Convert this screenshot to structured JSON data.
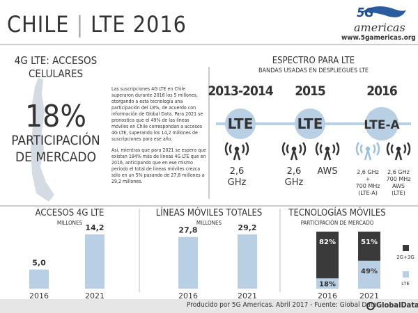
{
  "header": {
    "title_left": "CHILE",
    "title_right": "LTE 2016",
    "logo": "5G",
    "logo_sub": "americas",
    "url": "www.5gamericas.org"
  },
  "left": {
    "heading": "4G LTE: ACCESOS CELULARES",
    "big": "18%",
    "big_sub": "PARTICIPACIÓN DE MERCADO",
    "paragraphs": [
      "Las suscripciones 4G LTE en Chile superaron durante 2016 los 5 millones, otorgando a esta tecnología una participación del 18%, de acuerdo con información de Global Data. Para 2021 se pronostica que el 49% de las líneas móviles en Chile correspondan a accesos 4G LTE, superando los 14,2 millones de suscripciones para ese año.",
      "Así, mientras que para 2021 se espera que existan 184% más de líneas 4G LTE que en 2016, anticipando que en ese mismo periodo el total de líneas móviles crezca sólo en un 5% pasando de 27,8 millones a 29,2 millones."
    ]
  },
  "spectrum": {
    "title": "ESPECTRO PARA LTE",
    "subtitle": "BANDAS USADAS EN DESPLIEGUES LTE",
    "periods": [
      {
        "year": "2013-2014",
        "tech": "LTE",
        "bands": [
          [
            "2,6",
            "GHz"
          ]
        ]
      },
      {
        "year": "2015",
        "tech": "LTE",
        "bands": [
          [
            "2,6",
            "GHz"
          ],
          [
            "AWS"
          ]
        ]
      },
      {
        "year": "2016",
        "tech": "LTE-A",
        "bands": [
          [
            "2,6 GHz",
            "+",
            "700 MHz",
            "(LTE-A)"
          ],
          [
            "2,6 GHz",
            "700 MHz",
            "AWS",
            "(LTE)"
          ]
        ]
      }
    ]
  },
  "chart_data": [
    {
      "type": "bar",
      "title": "ACCESOS 4G LTE",
      "subtitle": "MILLONES",
      "categories": [
        "2016",
        "2021"
      ],
      "values": [
        5.0,
        14.2
      ],
      "value_labels": [
        "5,0",
        "14,2"
      ],
      "color": "#b9d0e4"
    },
    {
      "type": "bar",
      "title": "LÍNEAS MÓVILES TOTALES",
      "subtitle": "MILLONES",
      "categories": [
        "2016",
        "2021"
      ],
      "values": [
        27.8,
        29.2
      ],
      "value_labels": [
        "27,8",
        "29,2"
      ],
      "color": "#b9d0e4"
    },
    {
      "type": "stacked_bar",
      "title": "TECNOLOGÍAS MÓVILES",
      "subtitle": "PARTICIPACIÓN DE MERCADO",
      "categories": [
        "2016",
        "2021"
      ],
      "series": [
        {
          "name": "LTE",
          "color": "#b9d0e4",
          "values": [
            18,
            49
          ],
          "value_labels": [
            "18%",
            "49%"
          ]
        },
        {
          "name": "2G+3G",
          "color": "#3a3a3a",
          "values": [
            82,
            51
          ],
          "value_labels": [
            "82%",
            "51%"
          ]
        }
      ]
    }
  ],
  "footer": {
    "credit": "Producido por 5G Americas. Abril 2017 - Fuente: Global Data",
    "brand": "GlobalData."
  }
}
